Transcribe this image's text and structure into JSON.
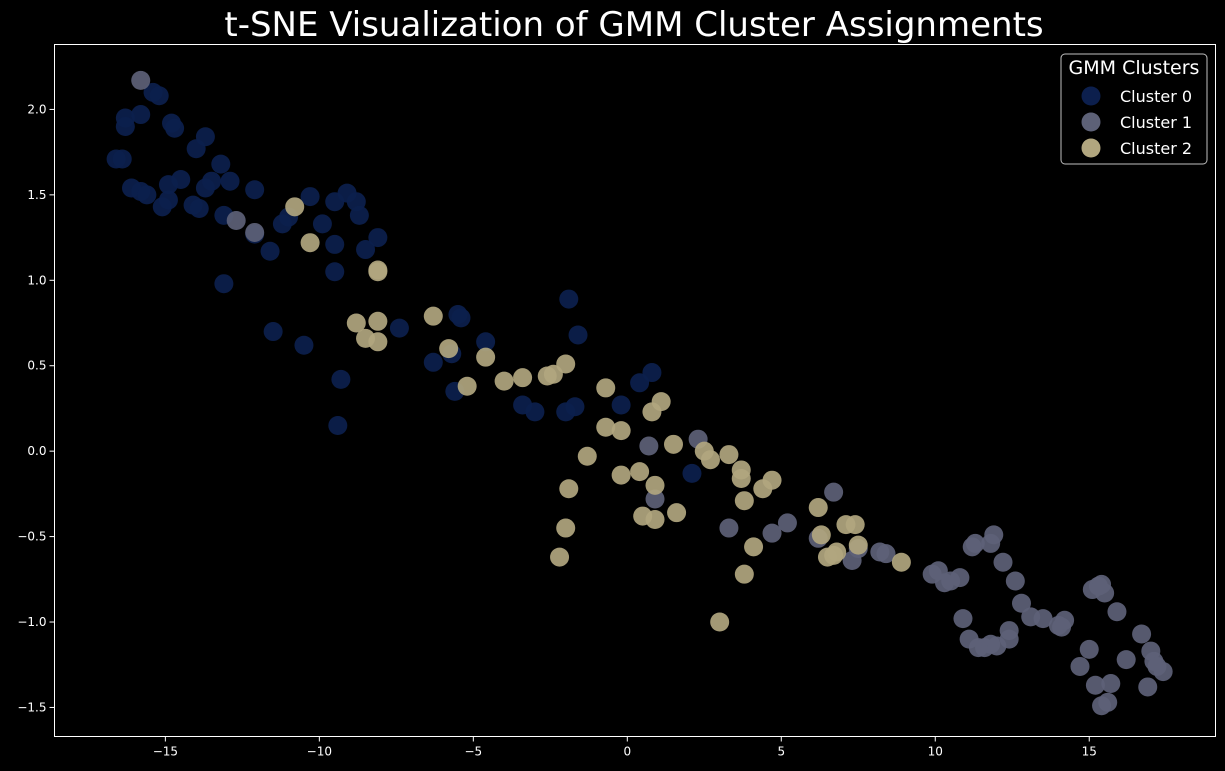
{
  "chart_data": {
    "type": "scatter",
    "title": "t-SNE Visualization of GMM Cluster Assignments",
    "xlabel": "",
    "ylabel": "",
    "xlim": [
      -18.6,
      19.1
    ],
    "ylim": [
      -1.67,
      2.38
    ],
    "xticks": [
      -15,
      -10,
      -5,
      0,
      5,
      10,
      15
    ],
    "yticks": [
      -1.5,
      -1.0,
      -0.5,
      0.0,
      0.5,
      1.0,
      1.5,
      2.0
    ],
    "xtick_labels": [
      "−15",
      "−10",
      "−5",
      "0",
      "5",
      "10",
      "15"
    ],
    "ytick_labels": [
      "−1.5",
      "−1.0",
      "−0.5",
      "0.0",
      "0.5",
      "1.0",
      "1.5",
      "2.0"
    ],
    "grid": false,
    "background": "#000000",
    "legend": {
      "title": "GMM Clusters",
      "placement": "top-right"
    },
    "series": [
      {
        "name": "Cluster 0",
        "color": "#0c1f4d",
        "points": [
          [
            -16.6,
            1.71
          ],
          [
            -16.4,
            1.71
          ],
          [
            -16.3,
            1.95
          ],
          [
            -16.3,
            1.9
          ],
          [
            -16.1,
            1.54
          ],
          [
            -15.8,
            1.52
          ],
          [
            -15.8,
            1.97
          ],
          [
            -15.6,
            1.5
          ],
          [
            -15.4,
            2.1
          ],
          [
            -15.2,
            2.08
          ],
          [
            -15.1,
            1.43
          ],
          [
            -14.9,
            1.56
          ],
          [
            -14.9,
            1.47
          ],
          [
            -14.8,
            1.92
          ],
          [
            -14.7,
            1.89
          ],
          [
            -14.5,
            1.59
          ],
          [
            -14.1,
            1.44
          ],
          [
            -14.0,
            1.77
          ],
          [
            -13.9,
            1.42
          ],
          [
            -13.7,
            1.84
          ],
          [
            -13.7,
            1.54
          ],
          [
            -13.5,
            1.58
          ],
          [
            -13.2,
            1.68
          ],
          [
            -13.1,
            1.38
          ],
          [
            -13.1,
            0.98
          ],
          [
            -12.9,
            1.58
          ],
          [
            -12.1,
            1.53
          ],
          [
            -12.1,
            1.27
          ],
          [
            -11.6,
            1.17
          ],
          [
            -11.5,
            0.7
          ],
          [
            -11.2,
            1.33
          ],
          [
            -11.0,
            1.37
          ],
          [
            -10.5,
            0.62
          ],
          [
            -10.3,
            1.49
          ],
          [
            -9.9,
            1.33
          ],
          [
            -9.5,
            1.46
          ],
          [
            -9.5,
            1.05
          ],
          [
            -9.5,
            1.21
          ],
          [
            -9.4,
            0.15
          ],
          [
            -9.3,
            0.42
          ],
          [
            -9.1,
            1.51
          ],
          [
            -8.8,
            1.46
          ],
          [
            -8.7,
            1.38
          ],
          [
            -8.5,
            1.18
          ],
          [
            -8.1,
            1.25
          ],
          [
            -7.4,
            0.72
          ],
          [
            -6.3,
            0.52
          ],
          [
            -5.7,
            0.57
          ],
          [
            -5.6,
            0.35
          ],
          [
            -5.5,
            0.8
          ],
          [
            -5.4,
            0.78
          ],
          [
            -4.6,
            0.64
          ],
          [
            -3.4,
            0.27
          ],
          [
            -3.0,
            0.23
          ],
          [
            -2.0,
            0.23
          ],
          [
            -1.9,
            0.89
          ],
          [
            -1.7,
            0.26
          ],
          [
            -1.6,
            0.68
          ],
          [
            -0.2,
            0.27
          ],
          [
            0.4,
            0.4
          ],
          [
            0.8,
            0.46
          ],
          [
            2.1,
            -0.13
          ]
        ]
      },
      {
        "name": "Cluster 1",
        "color": "#5d6177",
        "points": [
          [
            -15.8,
            2.17
          ],
          [
            -12.7,
            1.35
          ],
          [
            -12.1,
            1.28
          ],
          [
            0.7,
            0.03
          ],
          [
            0.9,
            -0.28
          ],
          [
            2.3,
            0.07
          ],
          [
            3.3,
            -0.45
          ],
          [
            4.7,
            -0.48
          ],
          [
            5.2,
            -0.42
          ],
          [
            6.2,
            -0.51
          ],
          [
            6.7,
            -0.24
          ],
          [
            7.3,
            -0.64
          ],
          [
            7.5,
            -0.57
          ],
          [
            8.2,
            -0.59
          ],
          [
            8.4,
            -0.6
          ],
          [
            9.9,
            -0.72
          ],
          [
            10.1,
            -0.7
          ],
          [
            10.3,
            -0.77
          ],
          [
            10.5,
            -0.76
          ],
          [
            10.8,
            -0.74
          ],
          [
            10.9,
            -0.98
          ],
          [
            11.1,
            -1.1
          ],
          [
            11.2,
            -0.56
          ],
          [
            11.3,
            -0.54
          ],
          [
            11.4,
            -1.15
          ],
          [
            11.6,
            -1.15
          ],
          [
            11.8,
            -0.54
          ],
          [
            11.8,
            -1.13
          ],
          [
            11.9,
            -0.49
          ],
          [
            12.0,
            -1.14
          ],
          [
            12.2,
            -0.65
          ],
          [
            12.4,
            -1.05
          ],
          [
            12.4,
            -1.1
          ],
          [
            12.6,
            -0.76
          ],
          [
            12.8,
            -0.89
          ],
          [
            13.1,
            -0.97
          ],
          [
            13.5,
            -0.98
          ],
          [
            14.0,
            -1.02
          ],
          [
            14.1,
            -1.03
          ],
          [
            14.2,
            -0.99
          ],
          [
            14.7,
            -1.26
          ],
          [
            15.0,
            -1.16
          ],
          [
            15.1,
            -0.81
          ],
          [
            15.2,
            -1.37
          ],
          [
            15.3,
            -0.79
          ],
          [
            15.4,
            -1.49
          ],
          [
            15.4,
            -0.78
          ],
          [
            15.5,
            -0.83
          ],
          [
            15.6,
            -1.47
          ],
          [
            15.7,
            -1.36
          ],
          [
            15.9,
            -0.94
          ],
          [
            16.2,
            -1.22
          ],
          [
            16.7,
            -1.07
          ],
          [
            16.9,
            -1.38
          ],
          [
            17.0,
            -1.17
          ],
          [
            17.1,
            -1.23
          ],
          [
            17.2,
            -1.26
          ],
          [
            17.4,
            -1.29
          ]
        ]
      },
      {
        "name": "Cluster 2",
        "color": "#b1a67f",
        "points": [
          [
            -10.8,
            1.43
          ],
          [
            -10.3,
            1.22
          ],
          [
            -8.8,
            0.75
          ],
          [
            -8.5,
            0.66
          ],
          [
            -8.1,
            1.06
          ],
          [
            -8.1,
            1.05
          ],
          [
            -8.1,
            0.76
          ],
          [
            -8.1,
            0.64
          ],
          [
            -6.3,
            0.79
          ],
          [
            -5.8,
            0.6
          ],
          [
            -5.2,
            0.38
          ],
          [
            -4.6,
            0.55
          ],
          [
            -4.0,
            0.41
          ],
          [
            -3.4,
            0.43
          ],
          [
            -2.6,
            0.44
          ],
          [
            -2.4,
            0.45
          ],
          [
            -2.2,
            -0.62
          ],
          [
            -2.0,
            0.51
          ],
          [
            -2.0,
            -0.45
          ],
          [
            -1.9,
            -0.22
          ],
          [
            -1.3,
            -0.03
          ],
          [
            -0.7,
            0.37
          ],
          [
            -0.7,
            0.14
          ],
          [
            -0.2,
            -0.14
          ],
          [
            -0.2,
            0.12
          ],
          [
            0.4,
            -0.12
          ],
          [
            0.5,
            -0.38
          ],
          [
            0.8,
            0.23
          ],
          [
            0.9,
            -0.2
          ],
          [
            0.9,
            -0.4
          ],
          [
            1.1,
            0.29
          ],
          [
            1.5,
            0.04
          ],
          [
            1.6,
            -0.36
          ],
          [
            2.5,
            0.0
          ],
          [
            2.7,
            -0.05
          ],
          [
            3.0,
            -1.0
          ],
          [
            3.3,
            -0.02
          ],
          [
            3.7,
            -0.11
          ],
          [
            3.7,
            -0.16
          ],
          [
            3.8,
            -0.29
          ],
          [
            3.8,
            -0.72
          ],
          [
            4.1,
            -0.56
          ],
          [
            4.4,
            -0.22
          ],
          [
            4.7,
            -0.17
          ],
          [
            6.2,
            -0.33
          ],
          [
            6.3,
            -0.49
          ],
          [
            6.5,
            -0.62
          ],
          [
            6.7,
            -0.61
          ],
          [
            6.8,
            -0.59
          ],
          [
            7.1,
            -0.43
          ],
          [
            7.4,
            -0.43
          ],
          [
            7.5,
            -0.55
          ],
          [
            8.9,
            -0.65
          ]
        ]
      }
    ]
  }
}
